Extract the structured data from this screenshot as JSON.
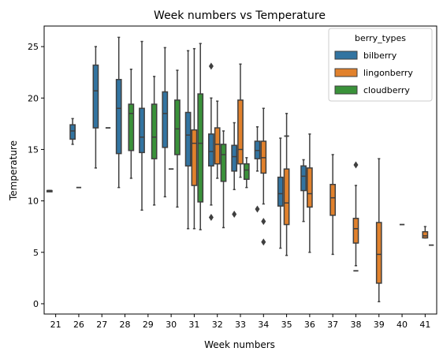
{
  "chart_data": {
    "type": "box",
    "title": "Week numbers vs Temperature",
    "xlabel": "Week numbers",
    "ylabel": "Temperature",
    "ylim": [
      -1,
      27
    ],
    "yticks": [
      0,
      5,
      10,
      15,
      20,
      25
    ],
    "categories": [
      "21",
      "26",
      "27",
      "28",
      "29",
      "30",
      "31",
      "32",
      "33",
      "34",
      "35",
      "36",
      "37",
      "38",
      "39",
      "40",
      "41"
    ],
    "grid": false,
    "legend": {
      "title": "berry_types",
      "placement": "top-right"
    },
    "series": [
      {
        "name": "bilberry",
        "color": "#3274a1",
        "boxes": [
          {
            "category": "21",
            "whislo": 11.0,
            "q1": 11.0,
            "med": 11.0,
            "q3": 11.0,
            "whishi": 11.0,
            "fliers": []
          },
          {
            "category": "26",
            "whislo": 15.5,
            "q1": 16.0,
            "med": 16.8,
            "q3": 17.4,
            "whishi": 18.0,
            "fliers": []
          },
          {
            "category": "27",
            "whislo": 13.2,
            "q1": 17.1,
            "med": 20.7,
            "q3": 23.2,
            "whishi": 25.0,
            "fliers": []
          },
          {
            "category": "28",
            "whislo": 11.3,
            "q1": 14.6,
            "med": 19.0,
            "q3": 21.8,
            "whishi": 25.9,
            "fliers": []
          },
          {
            "category": "29",
            "whislo": 9.1,
            "q1": 14.7,
            "med": 16.2,
            "q3": 19.0,
            "whishi": 25.5,
            "fliers": []
          },
          {
            "category": "30",
            "whislo": 10.4,
            "q1": 15.2,
            "med": 18.5,
            "q3": 20.6,
            "whishi": 24.9,
            "fliers": []
          },
          {
            "category": "31",
            "whislo": 7.3,
            "q1": 13.4,
            "med": 16.4,
            "q3": 18.6,
            "whishi": 24.6,
            "fliers": []
          },
          {
            "category": "32",
            "whislo": 9.6,
            "q1": 13.4,
            "med": 14.8,
            "q3": 16.5,
            "whishi": 20.0,
            "fliers": [
              8.4,
              23.1
            ]
          },
          {
            "category": "33",
            "whislo": 11.1,
            "q1": 12.9,
            "med": 14.3,
            "q3": 15.4,
            "whishi": 17.6,
            "fliers": [
              8.7
            ]
          },
          {
            "category": "34",
            "whislo": 12.9,
            "q1": 14.1,
            "med": 14.9,
            "q3": 15.8,
            "whishi": 17.2,
            "fliers": [
              9.2
            ]
          },
          {
            "category": "35",
            "whislo": 5.4,
            "q1": 9.5,
            "med": 10.7,
            "q3": 12.3,
            "whishi": 16.1,
            "fliers": []
          },
          {
            "category": "36",
            "whislo": 8.0,
            "q1": 11.0,
            "med": 12.4,
            "q3": 13.4,
            "whishi": 14.0,
            "fliers": []
          }
        ]
      },
      {
        "name": "lingonberry",
        "color": "#e1812c",
        "boxes": [
          {
            "category": "31",
            "whislo": 7.3,
            "q1": 11.5,
            "med": 15.6,
            "q3": 16.9,
            "whishi": 24.8,
            "fliers": []
          },
          {
            "category": "32",
            "whislo": 12.2,
            "q1": 13.6,
            "med": 15.5,
            "q3": 17.1,
            "whishi": 19.7,
            "fliers": []
          },
          {
            "category": "33",
            "whislo": 12.3,
            "q1": 13.6,
            "med": 15.0,
            "q3": 19.8,
            "whishi": 23.3,
            "fliers": []
          },
          {
            "category": "34",
            "whislo": 9.7,
            "q1": 12.7,
            "med": 14.2,
            "q3": 15.8,
            "whishi": 19.0,
            "fliers": [
              8.0,
              6.0
            ]
          },
          {
            "category": "35",
            "whislo": 4.7,
            "q1": 7.7,
            "med": 9.8,
            "q3": 13.1,
            "whishi": 18.5,
            "fliers": []
          },
          {
            "category": "36",
            "whislo": 5.0,
            "q1": 9.4,
            "med": 10.7,
            "q3": 13.2,
            "whishi": 16.5,
            "fliers": []
          },
          {
            "category": "37",
            "whislo": 4.8,
            "q1": 8.6,
            "med": 10.3,
            "q3": 11.6,
            "whishi": 14.5,
            "fliers": []
          },
          {
            "category": "38",
            "whislo": 3.7,
            "q1": 5.9,
            "med": 7.3,
            "q3": 8.3,
            "whishi": 11.5,
            "fliers": [
              13.5
            ]
          },
          {
            "category": "39",
            "whislo": 0.2,
            "q1": 2.0,
            "med": 4.8,
            "q3": 7.9,
            "whishi": 14.1,
            "fliers": []
          },
          {
            "category": "41",
            "whislo": 6.4,
            "q1": 6.4,
            "med": 6.6,
            "q3": 7.0,
            "whishi": 7.5,
            "fliers": []
          }
        ]
      },
      {
        "name": "cloudberry",
        "color": "#3a923a",
        "boxes": [
          {
            "category": "28",
            "whislo": 12.2,
            "q1": 14.9,
            "med": 18.5,
            "q3": 19.4,
            "whishi": 22.8,
            "fliers": []
          },
          {
            "category": "29",
            "whislo": 9.6,
            "q1": 14.1,
            "med": 16.2,
            "q3": 19.4,
            "whishi": 22.1,
            "fliers": []
          },
          {
            "category": "30",
            "whislo": 9.4,
            "q1": 14.5,
            "med": 17.0,
            "q3": 19.8,
            "whishi": 22.7,
            "fliers": []
          },
          {
            "category": "31",
            "whislo": 7.2,
            "q1": 9.9,
            "med": 15.6,
            "q3": 20.4,
            "whishi": 25.3,
            "fliers": []
          },
          {
            "category": "32",
            "whislo": 7.4,
            "q1": 11.9,
            "med": 14.5,
            "q3": 15.5,
            "whishi": 16.8,
            "fliers": []
          },
          {
            "category": "33",
            "whislo": 11.3,
            "q1": 12.1,
            "med": 13.0,
            "q3": 13.6,
            "whishi": 14.2,
            "fliers": []
          }
        ]
      }
    ],
    "single_values": [
      {
        "category": "21",
        "series": "bilberry",
        "value": 11.0
      },
      {
        "category": "26",
        "series": "lingonberry",
        "value": 11.3
      },
      {
        "category": "27",
        "series": "cloudberry",
        "value": 17.1
      },
      {
        "category": "30",
        "series": "lingonberry",
        "value": 13.1
      },
      {
        "category": "35",
        "series": "lingonberry",
        "value": 16.3
      },
      {
        "category": "38",
        "series": "lingonberry",
        "value": 3.2
      },
      {
        "category": "40",
        "series": "lingonberry",
        "value": 7.7
      },
      {
        "category": "41",
        "series": "cloudberry",
        "value": 5.7
      }
    ]
  }
}
